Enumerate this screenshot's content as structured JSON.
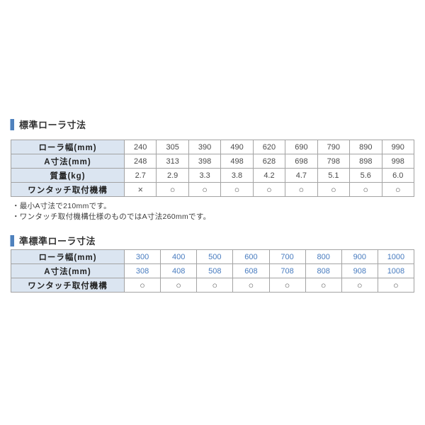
{
  "colors": {
    "accent_bar": "#4f81bd",
    "header_cell_bg": "#dbe5f1",
    "table_border": "#a3a3a3",
    "value_text": "#4a4a4a",
    "blue_value_text": "#477bbf",
    "title_text": "#333333",
    "page_bg": "#ffffff"
  },
  "sections": [
    {
      "title": "標準ローラ寸法",
      "table": {
        "rows": [
          {
            "label": "ローラ幅(mm)",
            "style": "plain",
            "values": [
              "240",
              "305",
              "390",
              "490",
              "620",
              "690",
              "790",
              "890",
              "990"
            ]
          },
          {
            "label": "A寸法(mm)",
            "style": "plain",
            "values": [
              "248",
              "313",
              "398",
              "498",
              "628",
              "698",
              "798",
              "898",
              "998"
            ]
          },
          {
            "label": "質量(kg)",
            "style": "plain",
            "values": [
              "2.7",
              "2.9",
              "3.3",
              "3.8",
              "4.2",
              "4.7",
              "5.1",
              "5.6",
              "6.0"
            ]
          },
          {
            "label": "ワンタッチ取付機構",
            "style": "mark",
            "values": [
              "×",
              "○",
              "○",
              "○",
              "○",
              "○",
              "○",
              "○",
              "○"
            ]
          }
        ]
      },
      "notes": [
        "・最小A寸法で210mmです。",
        "・ワンタッチ取付機構仕様のものではA寸法260mmです。"
      ]
    },
    {
      "title": "準標準ローラ寸法",
      "table": {
        "rows": [
          {
            "label": "ローラ幅(mm)",
            "style": "blue",
            "values": [
              "300",
              "400",
              "500",
              "600",
              "700",
              "800",
              "900",
              "1000"
            ]
          },
          {
            "label": "A寸法(mm)",
            "style": "blue",
            "values": [
              "308",
              "408",
              "508",
              "608",
              "708",
              "808",
              "908",
              "1008"
            ]
          },
          {
            "label": "ワンタッチ取付機構",
            "style": "mark",
            "values": [
              "○",
              "○",
              "○",
              "○",
              "○",
              "○",
              "○",
              "○"
            ]
          }
        ]
      },
      "notes": []
    }
  ]
}
